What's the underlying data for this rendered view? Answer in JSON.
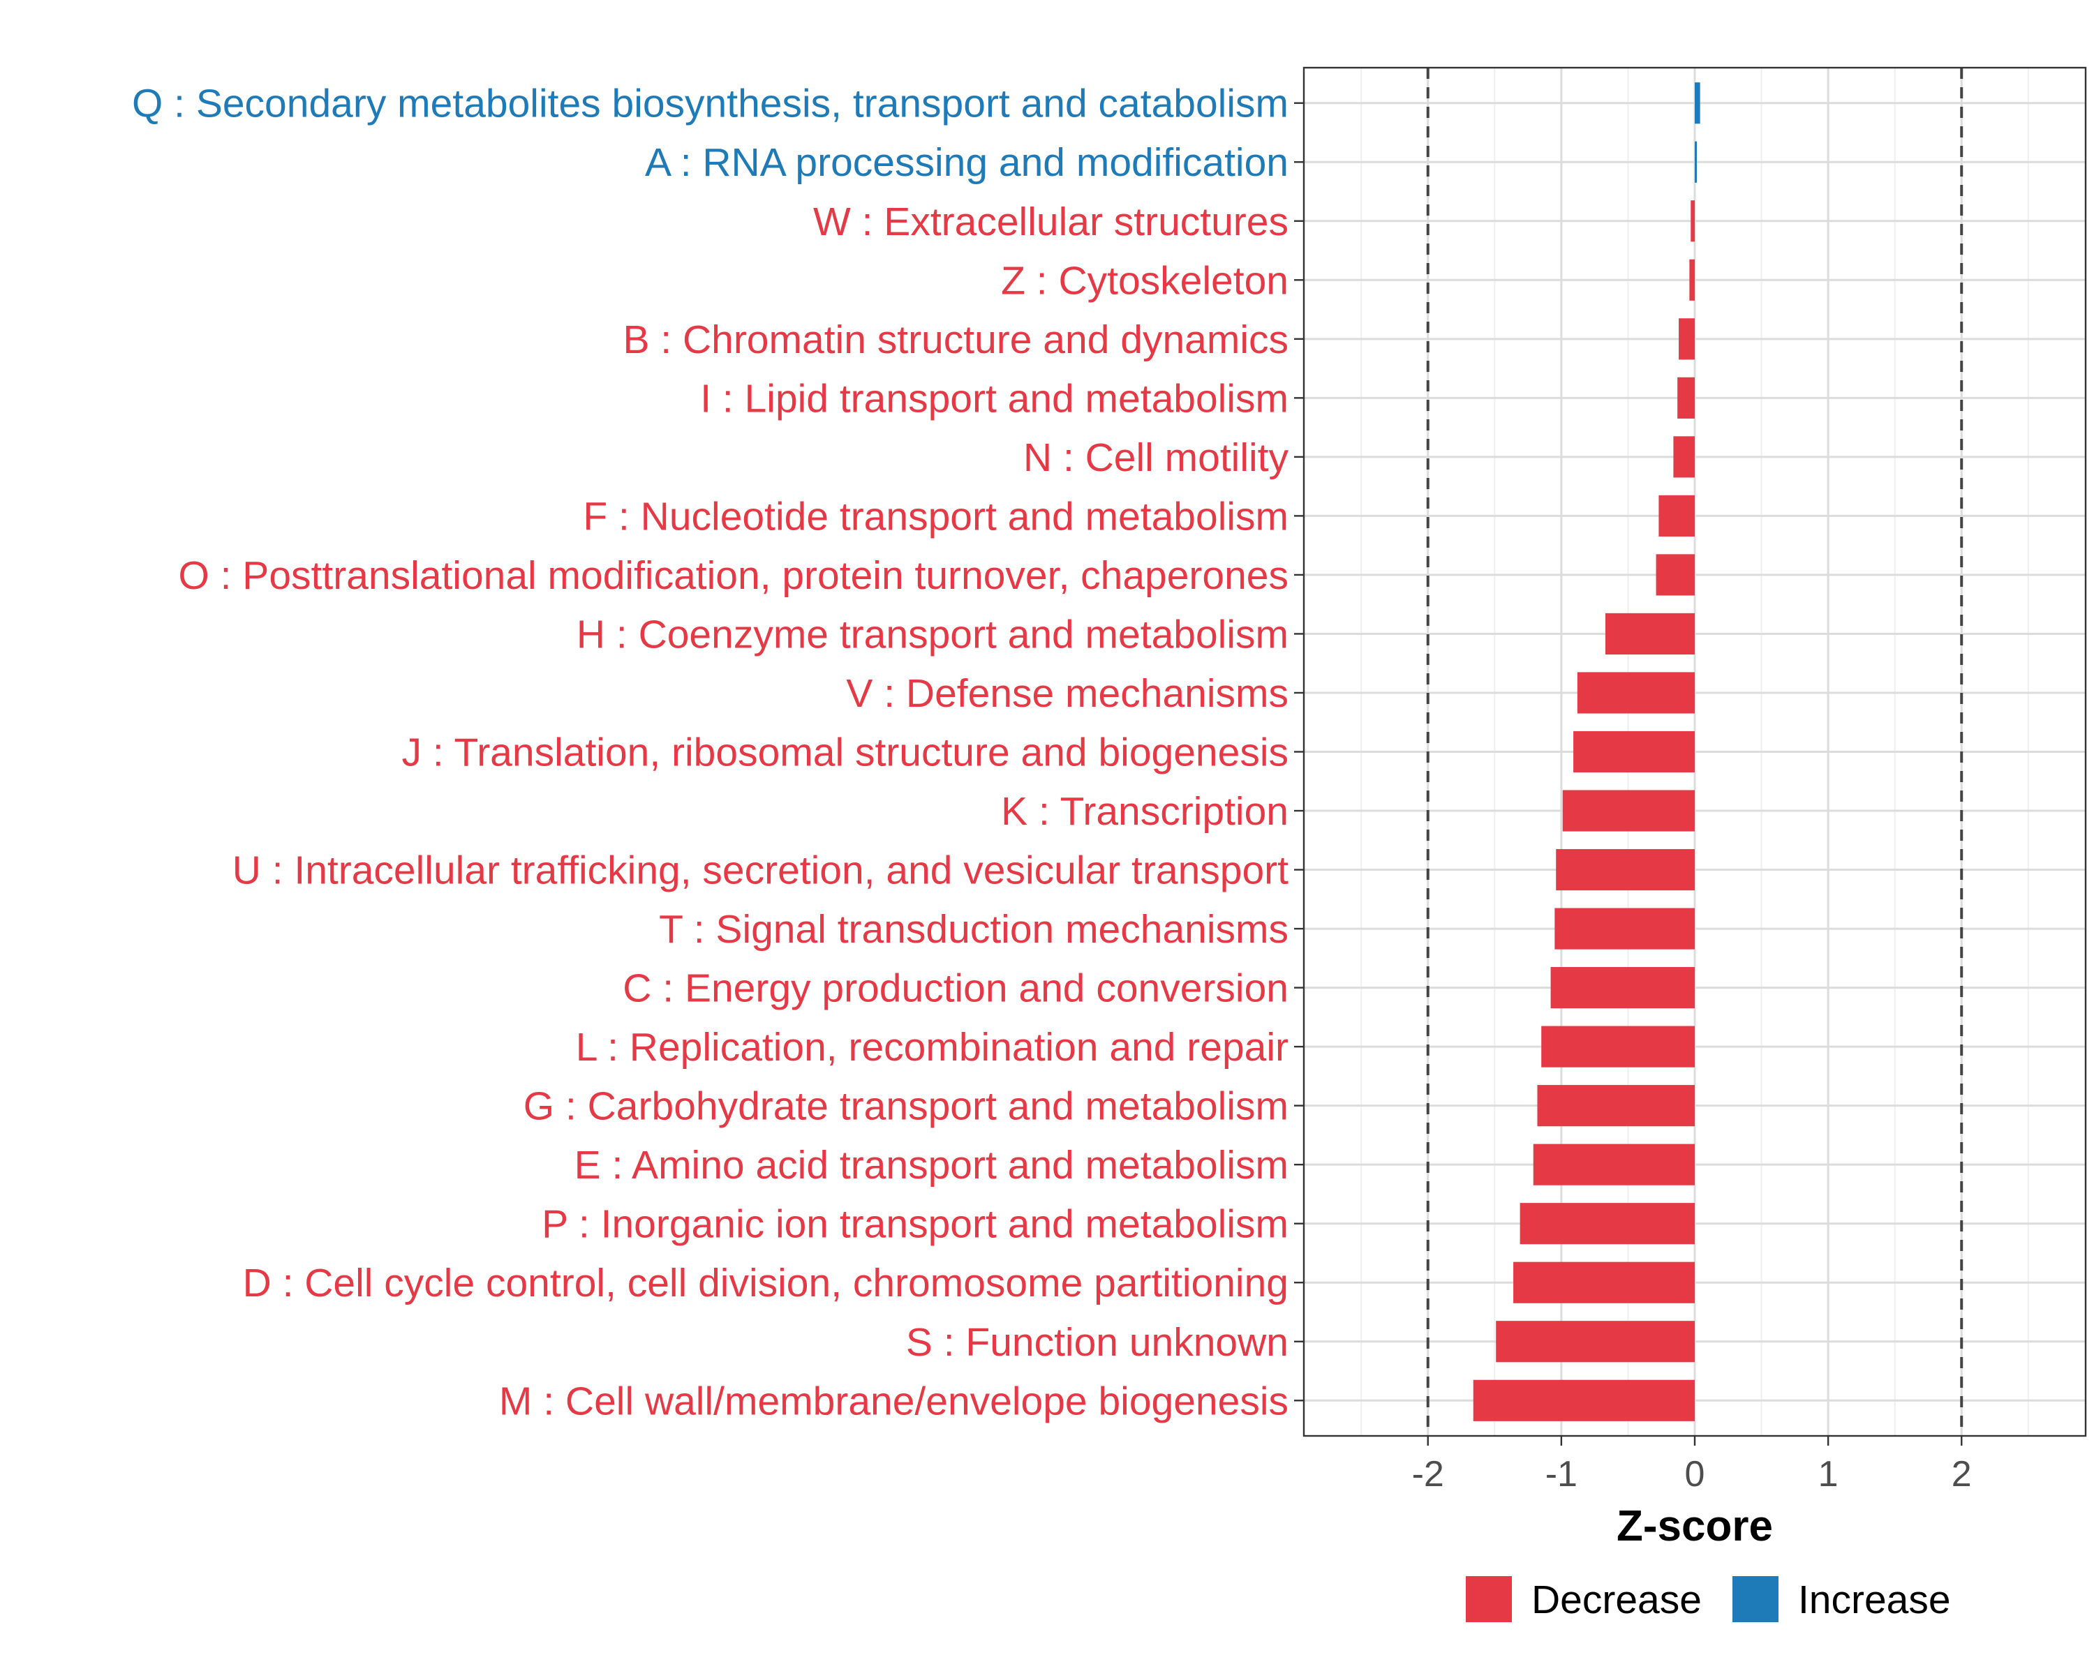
{
  "chart_data": {
    "type": "bar",
    "orientation": "horizontal",
    "title": "",
    "xlabel": "Z-score",
    "ylabel": "",
    "xlim": [
      -2.93,
      2.93
    ],
    "xticks": [
      -2,
      -1,
      0,
      1,
      2
    ],
    "xtick_labels": [
      "-2",
      "-1",
      "0",
      "1",
      "2"
    ],
    "reference_lines": [
      -2,
      2
    ],
    "grid": true,
    "legend": {
      "position": "bottom",
      "entries": [
        {
          "label": "Decrease",
          "color": "#E63946"
        },
        {
          "label": "Increase",
          "color": "#1F7AB8"
        }
      ]
    },
    "colors": {
      "Decrease": "#E63946",
      "Increase": "#1F7AB8"
    },
    "categories": [
      "Q : Secondary metabolites biosynthesis, transport and catabolism",
      "A : RNA processing and modification",
      "W : Extracellular structures",
      "Z : Cytoskeleton",
      "B : Chromatin structure and dynamics",
      "I : Lipid transport and metabolism",
      "N : Cell motility",
      "F : Nucleotide transport and metabolism",
      "O : Posttranslational modification, protein turnover, chaperones",
      "H : Coenzyme transport and metabolism",
      "V : Defense mechanisms",
      "J : Translation, ribosomal structure and biogenesis",
      "K : Transcription",
      "U : Intracellular trafficking, secretion, and vesicular transport",
      "T : Signal transduction mechanisms",
      "C : Energy production and conversion",
      "L : Replication, recombination and repair",
      "G : Carbohydrate transport and metabolism",
      "E : Amino acid transport and metabolism",
      "P : Inorganic ion transport and metabolism",
      "D : Cell cycle control, cell division, chromosome partitioning",
      "S : Function unknown",
      "M : Cell wall/membrane/envelope biogenesis"
    ],
    "values": [
      0.04,
      0.01,
      -0.03,
      -0.04,
      -0.12,
      -0.13,
      -0.16,
      -0.27,
      -0.29,
      -0.67,
      -0.88,
      -0.91,
      -0.99,
      -1.04,
      -1.05,
      -1.08,
      -1.15,
      -1.18,
      -1.21,
      -1.31,
      -1.36,
      -1.49,
      -1.66
    ],
    "direction": [
      "Increase",
      "Increase",
      "Decrease",
      "Decrease",
      "Decrease",
      "Decrease",
      "Decrease",
      "Decrease",
      "Decrease",
      "Decrease",
      "Decrease",
      "Decrease",
      "Decrease",
      "Decrease",
      "Decrease",
      "Decrease",
      "Decrease",
      "Decrease",
      "Decrease",
      "Decrease",
      "Decrease",
      "Decrease",
      "Decrease"
    ]
  }
}
